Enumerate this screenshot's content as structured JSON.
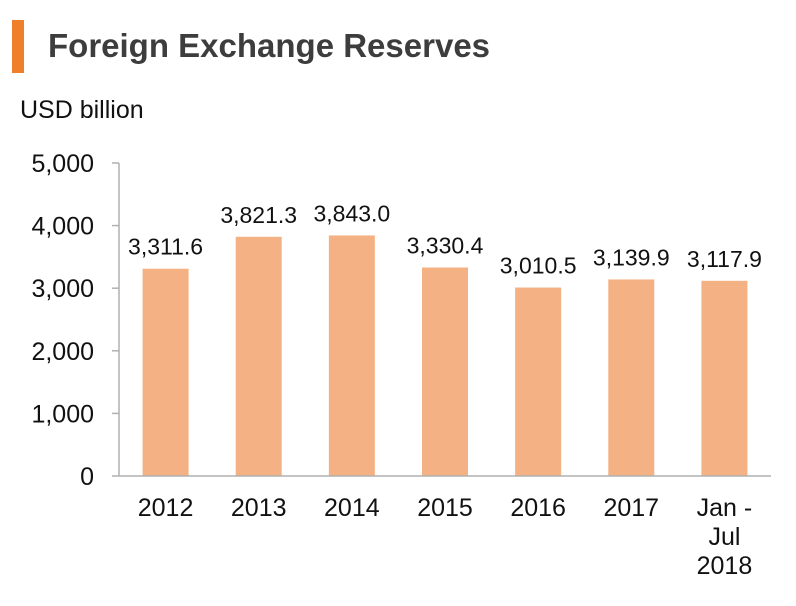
{
  "chart_data": {
    "type": "bar",
    "title": "Foreign Exchange Reserves",
    "ylabel": "USD billion",
    "categories": [
      "2012",
      "2013",
      "2014",
      "2015",
      "2016",
      "2017",
      "Jan - Jul 2018"
    ],
    "category_lines": [
      [
        "2012"
      ],
      [
        "2013"
      ],
      [
        "2014"
      ],
      [
        "2015"
      ],
      [
        "2016"
      ],
      [
        "2017"
      ],
      [
        "Jan -",
        "Jul",
        "2018"
      ]
    ],
    "values": [
      3311.6,
      3821.3,
      3843.0,
      3330.4,
      3010.5,
      3139.9,
      3117.9
    ],
    "data_labels": [
      "3,311.6",
      "3,821.3",
      "3,843.0",
      "3,330.4",
      "3,010.5",
      "3,139.9",
      "3,117.9"
    ],
    "yticks": [
      0,
      1000,
      2000,
      3000,
      4000,
      5000
    ],
    "ytick_labels": [
      "0",
      "1,000",
      "2,000",
      "3,000",
      "4,000",
      "5,000"
    ],
    "ylim": [
      0,
      5000
    ],
    "grid": false,
    "legend": "none",
    "colors": {
      "bar": "#f4b183",
      "accent": "#f07f2c",
      "axis": "#b0b0b0"
    }
  }
}
